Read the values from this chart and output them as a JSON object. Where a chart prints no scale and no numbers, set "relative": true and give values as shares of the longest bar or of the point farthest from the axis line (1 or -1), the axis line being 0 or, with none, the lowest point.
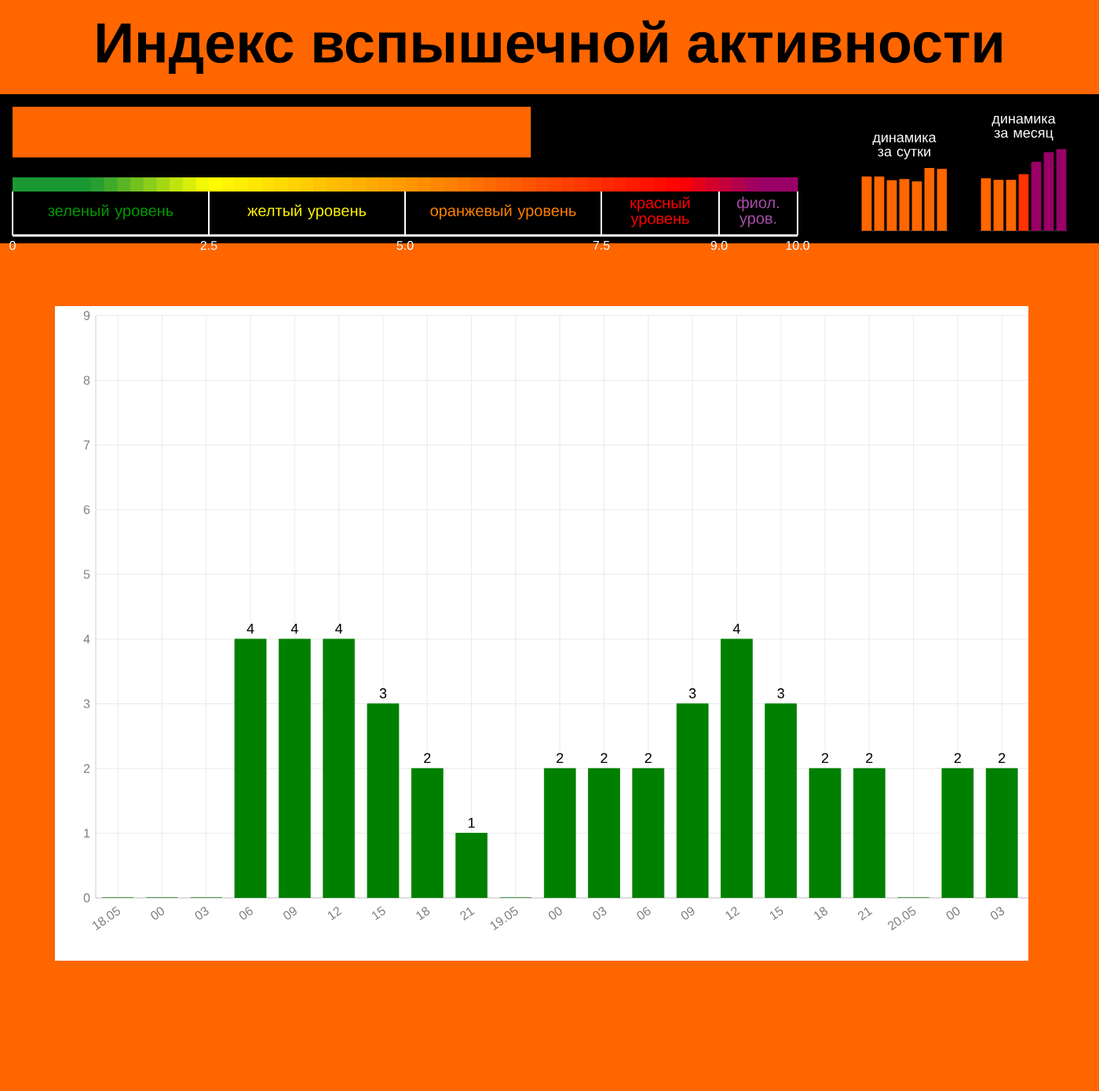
{
  "chart_data": [
    {
      "type": "bar",
      "orientation": "horizontal",
      "title": "Индекс вспышечной активности",
      "categories": [
        null
      ],
      "values": [
        6.6
      ],
      "color": "#ff6600",
      "xlim": [
        0,
        10
      ],
      "xticks": [
        0,
        2.5,
        {
          "value": 5,
          "label": "5.0"
        },
        7.5,
        {
          "value": 9,
          "label": "9.0"
        },
        {
          "value": 10,
          "label": "10.0"
        }
      ],
      "annotations": [
        "зеленый уровень",
        "желтый уровень",
        "оранжевый уровень",
        "красный уровень",
        "фиол. уров."
      ]
    },
    {
      "type": "bar",
      "categories": [
        "18.05",
        "00",
        "03",
        "06",
        "09",
        "12",
        "15",
        "18",
        "21",
        "19.05",
        "00",
        "03",
        "06",
        "09",
        "12",
        "15",
        "18",
        "21",
        "20.05",
        "00",
        "03"
      ],
      "values": [
        0,
        0,
        0,
        4,
        4,
        4,
        3,
        2,
        1,
        0,
        2,
        2,
        2,
        3,
        4,
        3,
        2,
        2,
        0,
        2,
        2
      ],
      "value_labels": [
        null,
        null,
        null,
        "4",
        "4",
        "4",
        "3",
        "2",
        "1",
        null,
        "2",
        "2",
        "2",
        "3",
        "4",
        "3",
        "2",
        "2",
        null,
        "2",
        "2"
      ],
      "color": "#008000",
      "ylim": [
        0,
        9
      ],
      "yticks": [
        0,
        1,
        2,
        3,
        4,
        5,
        6,
        7,
        8,
        9
      ],
      "grid": true
    },
    {
      "type": "bar",
      "title": "динамика за сутки",
      "relative": true,
      "categories": [
        null,
        null,
        null,
        null,
        null,
        null,
        null
      ],
      "values": [
        0.86,
        0.86,
        0.8,
        0.82,
        0.78,
        1,
        0.98
      ],
      "color": "#ff6600"
    },
    {
      "type": "bar",
      "title": "динамика за месяц",
      "relative": true,
      "categories": [
        null,
        null,
        null,
        null,
        null,
        null,
        null
      ],
      "values": [
        0.64,
        0.62,
        0.62,
        0.69,
        0.84,
        0.96,
        1
      ],
      "colors": [
        "#ff6600",
        "#ff6600",
        "#ff6600",
        "#ff3300",
        "#990066",
        "#990066",
        "#990066"
      ]
    }
  ]
}
